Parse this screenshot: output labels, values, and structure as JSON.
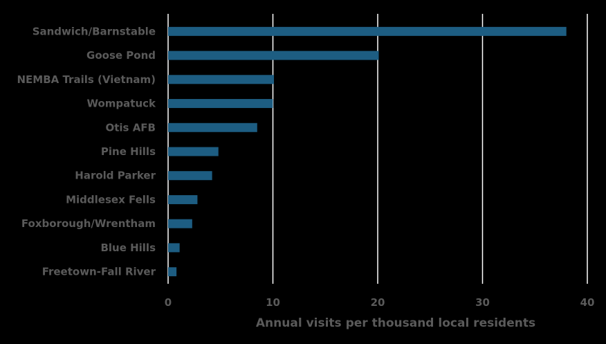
{
  "chart_data": {
    "type": "bar",
    "orientation": "horizontal",
    "title": "",
    "xlabel": "Annual visits per thousand local residents",
    "ylabel": "",
    "categories": [
      "Sandwich/Barnstable",
      "Goose Pond",
      "NEMBA Trails (Vietnam)",
      "Wompatuck",
      "Otis AFB",
      "Pine Hills",
      "Harold Parker",
      "Middlesex Fells",
      "Foxborough/Wrentham",
      "Blue Hills",
      "Freetown-Fall River"
    ],
    "values": [
      38.0,
      20.1,
      10.1,
      10.0,
      8.5,
      4.8,
      4.2,
      2.8,
      2.3,
      1.1,
      0.8
    ],
    "xlim": [
      0,
      40
    ],
    "xticks": [
      0,
      10,
      20,
      30,
      40
    ],
    "grid": true,
    "legend": "none",
    "colors": {
      "bar": "#1d5d82",
      "grid": "#ffffff",
      "text": "#5a5a5a",
      "background": "#000000"
    }
  }
}
